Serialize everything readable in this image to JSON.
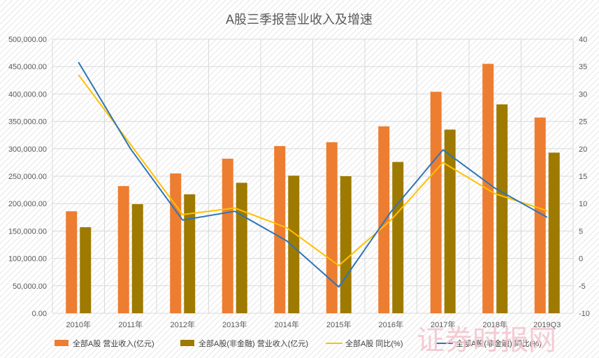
{
  "chart_data": {
    "type": "bar",
    "title": "A股三季报营业收入及增速",
    "categories": [
      "2010年",
      "2011年",
      "2012年",
      "2013年",
      "2014年",
      "2015年",
      "2016年",
      "2017年",
      "2018年",
      "2019Q3"
    ],
    "left_axis": {
      "ticks": [
        "0.00",
        "50,000.00",
        "100,000.00",
        "150,000.00",
        "200,000.00",
        "250,000.00",
        "300,000.00",
        "350,000.00",
        "400,000.00",
        "450,000.00",
        "500,000.00"
      ],
      "range": [
        0,
        500000
      ]
    },
    "right_axis": {
      "ticks": [
        "-10",
        "-5",
        "0",
        "5",
        "10",
        "15",
        "20",
        "25",
        "30",
        "35",
        "40"
      ],
      "range": [
        -10,
        40
      ]
    },
    "series": [
      {
        "name": "全部A股 营业收入(亿元)",
        "kind": "bar",
        "axis": "left",
        "color": "#ED7D31",
        "values": [
          186000,
          232000,
          255000,
          282000,
          305000,
          312000,
          341000,
          404000,
          455000,
          357000
        ]
      },
      {
        "name": "全部A股(非金融) 营业收入(亿元)",
        "kind": "bar",
        "axis": "left",
        "color": "#9E7A00",
        "values": [
          157000,
          199000,
          217000,
          238000,
          251000,
          250000,
          276000,
          335000,
          381000,
          293000
        ]
      },
      {
        "name": "全部A股 同比(%)",
        "kind": "line",
        "axis": "right",
        "color": "#FFC000",
        "values": [
          33.5,
          20.8,
          8.0,
          9.2,
          5.6,
          -1.3,
          7.0,
          17.5,
          11.8,
          8.7
        ]
      },
      {
        "name": "全部A股(非金融) 同比(%)",
        "kind": "line",
        "axis": "right",
        "color": "#2E75B6",
        "values": [
          35.8,
          20.0,
          7.0,
          8.6,
          3.2,
          -5.2,
          8.5,
          19.8,
          12.8,
          7.5
        ]
      }
    ],
    "grid": true,
    "legend_position": "bottom"
  },
  "watermark": "证券时报网"
}
